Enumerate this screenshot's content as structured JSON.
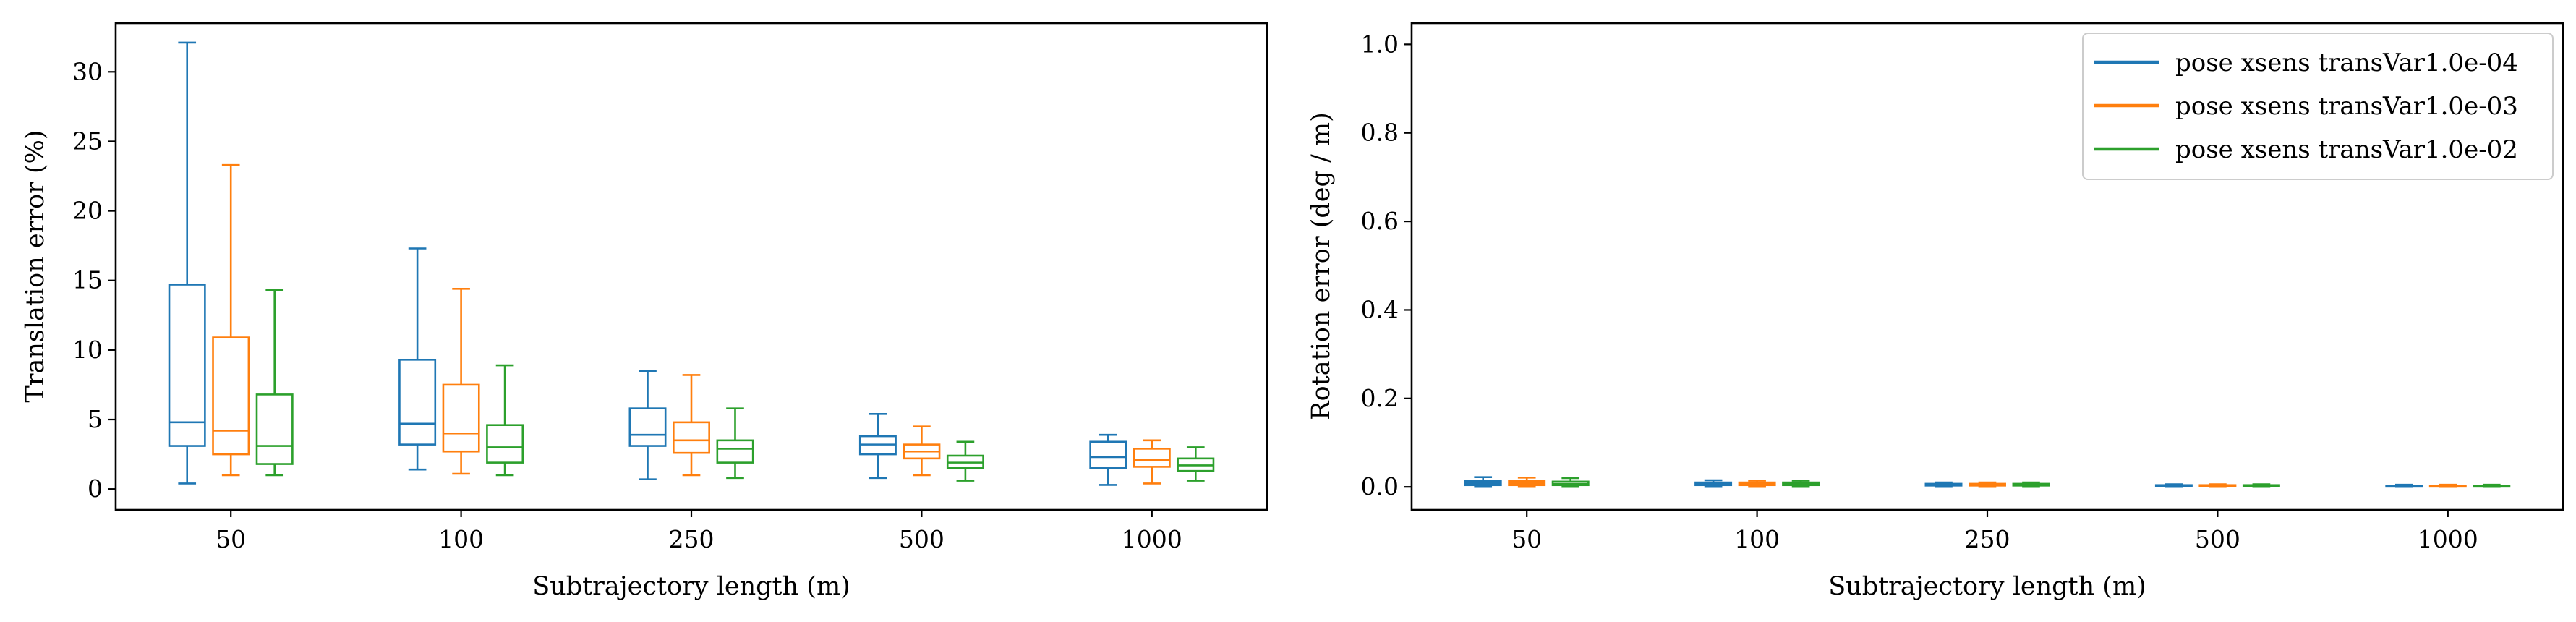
{
  "chart_data": [
    {
      "type": "box",
      "title": "",
      "xlabel": "Subtrajectory length (m)",
      "ylabel": "Translation error (%)",
      "categories": [
        "50",
        "100",
        "250",
        "500",
        "1000"
      ],
      "ylim": [
        -1.5,
        33.5
      ],
      "yticks": [
        0,
        5,
        10,
        15,
        20,
        25,
        30
      ],
      "grid": false,
      "series": [
        {
          "name": "pose xsens transVar1.0e-04",
          "color": "#1f77b4",
          "boxes": [
            {
              "whislo": 0.4,
              "q1": 3.1,
              "med": 4.8,
              "q3": 14.7,
              "whishi": 32.1
            },
            {
              "whislo": 1.4,
              "q1": 3.2,
              "med": 4.7,
              "q3": 9.3,
              "whishi": 17.3
            },
            {
              "whislo": 0.7,
              "q1": 3.1,
              "med": 3.9,
              "q3": 5.8,
              "whishi": 8.5
            },
            {
              "whislo": 0.8,
              "q1": 2.5,
              "med": 3.2,
              "q3": 3.8,
              "whishi": 5.4
            },
            {
              "whislo": 0.3,
              "q1": 1.5,
              "med": 2.3,
              "q3": 3.4,
              "whishi": 3.9
            }
          ]
        },
        {
          "name": "pose xsens transVar1.0e-03",
          "color": "#ff7f0e",
          "boxes": [
            {
              "whislo": 1.0,
              "q1": 2.5,
              "med": 4.2,
              "q3": 10.9,
              "whishi": 23.3
            },
            {
              "whislo": 1.1,
              "q1": 2.7,
              "med": 4.0,
              "q3": 7.5,
              "whishi": 14.4
            },
            {
              "whislo": 1.0,
              "q1": 2.6,
              "med": 3.5,
              "q3": 4.8,
              "whishi": 8.2
            },
            {
              "whislo": 1.0,
              "q1": 2.2,
              "med": 2.7,
              "q3": 3.2,
              "whishi": 4.5
            },
            {
              "whislo": 0.4,
              "q1": 1.6,
              "med": 2.1,
              "q3": 2.9,
              "whishi": 3.5
            }
          ]
        },
        {
          "name": "pose xsens transVar1.0e-02",
          "color": "#2ca02c",
          "boxes": [
            {
              "whislo": 1.0,
              "q1": 1.8,
              "med": 3.1,
              "q3": 6.8,
              "whishi": 14.3
            },
            {
              "whislo": 1.0,
              "q1": 1.9,
              "med": 3.0,
              "q3": 4.6,
              "whishi": 8.9
            },
            {
              "whislo": 0.8,
              "q1": 1.9,
              "med": 2.9,
              "q3": 3.5,
              "whishi": 5.8
            },
            {
              "whislo": 0.6,
              "q1": 1.5,
              "med": 1.9,
              "q3": 2.4,
              "whishi": 3.4
            },
            {
              "whislo": 0.6,
              "q1": 1.3,
              "med": 1.7,
              "q3": 2.2,
              "whishi": 3.0
            }
          ]
        }
      ]
    },
    {
      "type": "box",
      "title": "",
      "xlabel": "Subtrajectory length (m)",
      "ylabel": "Rotation error (deg / m)",
      "categories": [
        "50",
        "100",
        "250",
        "500",
        "1000"
      ],
      "ylim": [
        -0.052,
        1.048
      ],
      "yticks": [
        0.0,
        0.2,
        0.4,
        0.6,
        0.8,
        1.0
      ],
      "ytick_labels": [
        "0.0",
        "0.2",
        "0.4",
        "0.6",
        "0.8",
        "1.0"
      ],
      "grid": false,
      "legend": {
        "placement": "top-right",
        "entries": [
          "pose xsens transVar1.0e-04",
          "pose xsens transVar1.0e-03",
          "pose xsens transVar1.0e-02"
        ]
      },
      "series": [
        {
          "name": "pose xsens transVar1.0e-04",
          "color": "#1f77b4",
          "boxes": [
            {
              "whislo": 0.0,
              "q1": 0.004,
              "med": 0.008,
              "q3": 0.013,
              "whishi": 0.022
            },
            {
              "whislo": 0.0,
              "q1": 0.004,
              "med": 0.007,
              "q3": 0.01,
              "whishi": 0.015
            },
            {
              "whislo": 0.0,
              "q1": 0.003,
              "med": 0.005,
              "q3": 0.007,
              "whishi": 0.01
            },
            {
              "whislo": 0.0,
              "q1": 0.002,
              "med": 0.003,
              "q3": 0.004,
              "whishi": 0.006
            },
            {
              "whislo": 0.0,
              "q1": 0.001,
              "med": 0.002,
              "q3": 0.003,
              "whishi": 0.005
            }
          ]
        },
        {
          "name": "pose xsens transVar1.0e-03",
          "color": "#ff7f0e",
          "boxes": [
            {
              "whislo": 0.0,
              "q1": 0.004,
              "med": 0.008,
              "q3": 0.013,
              "whishi": 0.021
            },
            {
              "whislo": 0.0,
              "q1": 0.004,
              "med": 0.007,
              "q3": 0.01,
              "whishi": 0.014
            },
            {
              "whislo": 0.0,
              "q1": 0.003,
              "med": 0.005,
              "q3": 0.007,
              "whishi": 0.01
            },
            {
              "whislo": 0.0,
              "q1": 0.002,
              "med": 0.003,
              "q3": 0.004,
              "whishi": 0.006
            },
            {
              "whislo": 0.0,
              "q1": 0.001,
              "med": 0.002,
              "q3": 0.003,
              "whishi": 0.005
            }
          ]
        },
        {
          "name": "pose xsens transVar1.0e-02",
          "color": "#2ca02c",
          "boxes": [
            {
              "whislo": 0.0,
              "q1": 0.004,
              "med": 0.007,
              "q3": 0.012,
              "whishi": 0.02
            },
            {
              "whislo": 0.0,
              "q1": 0.004,
              "med": 0.007,
              "q3": 0.01,
              "whishi": 0.014
            },
            {
              "whislo": 0.0,
              "q1": 0.003,
              "med": 0.005,
              "q3": 0.007,
              "whishi": 0.01
            },
            {
              "whislo": 0.0,
              "q1": 0.002,
              "med": 0.003,
              "q3": 0.004,
              "whishi": 0.006
            },
            {
              "whislo": 0.0,
              "q1": 0.001,
              "med": 0.002,
              "q3": 0.003,
              "whishi": 0.005
            }
          ]
        }
      ]
    }
  ]
}
